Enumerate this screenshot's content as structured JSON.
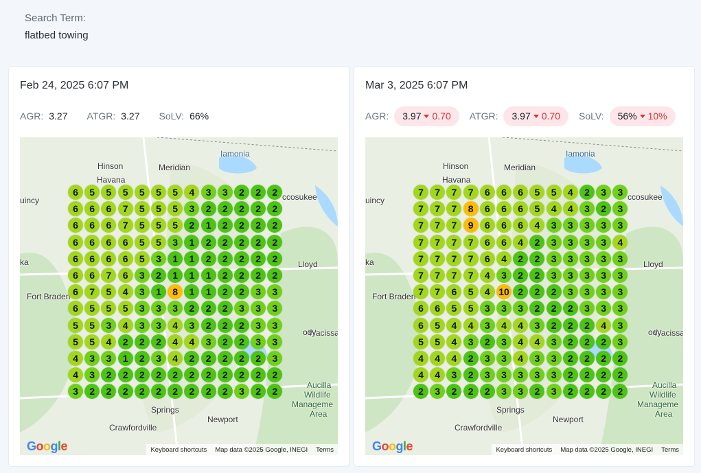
{
  "search": {
    "label": "Search Term:",
    "value": "flatbed towing"
  },
  "colors": {
    "green_dark": "#4cc414",
    "green_mid": "#6fd119",
    "green_light": "#a2d71d",
    "yellow": "#fbbc04",
    "delta_red": "#e03131",
    "pill_bg": "#fde6e9"
  },
  "map": {
    "footer": {
      "shortcuts": "Keyboard shortcuts",
      "data": "Map data ©2025 Google, INEGI",
      "terms": "Terms"
    },
    "logo": "Google",
    "places": [
      {
        "name": "Hinson"
      },
      {
        "name": "Havana"
      },
      {
        "name": "Meridian"
      },
      {
        "name": "Iamonia"
      },
      {
        "name": "ccosukee"
      },
      {
        "name": "uincy"
      },
      {
        "name": "Lloyd"
      },
      {
        "name": "Fort Braden"
      },
      {
        "name": "Wacissa"
      },
      {
        "name": "Aucilla"
      },
      {
        "name": "Wildlife"
      },
      {
        "name": "Manageme"
      },
      {
        "name": "Area"
      },
      {
        "name": "Springs"
      },
      {
        "name": "Newport"
      },
      {
        "name": "Crawfordville"
      },
      {
        "name": "ody"
      },
      {
        "name": "ka"
      }
    ]
  },
  "snapshots": [
    {
      "date": "Feb 24, 2025 6:07 PM",
      "metrics": [
        {
          "label": "AGR:",
          "value": "3.27",
          "delta": ""
        },
        {
          "label": "ATGR:",
          "value": "3.27",
          "delta": ""
        },
        {
          "label": "SoLV:",
          "value": "66%",
          "delta": ""
        }
      ],
      "grid": [
        [
          6,
          5,
          5,
          5,
          5,
          5,
          5,
          4,
          3,
          3,
          2,
          2,
          2
        ],
        [
          6,
          6,
          6,
          7,
          5,
          5,
          5,
          3,
          2,
          2,
          2,
          2,
          2
        ],
        [
          6,
          6,
          6,
          7,
          5,
          5,
          5,
          2,
          1,
          2,
          2,
          2,
          2
        ],
        [
          6,
          6,
          6,
          6,
          5,
          5,
          3,
          1,
          2,
          2,
          2,
          2,
          2
        ],
        [
          6,
          6,
          6,
          6,
          5,
          3,
          1,
          1,
          2,
          2,
          2,
          2,
          2
        ],
        [
          6,
          6,
          7,
          6,
          3,
          2,
          1,
          1,
          1,
          2,
          2,
          2,
          2
        ],
        [
          6,
          7,
          5,
          4,
          3,
          1,
          8,
          1,
          1,
          2,
          2,
          3,
          3
        ],
        [
          6,
          5,
          5,
          5,
          3,
          3,
          3,
          2,
          2,
          2,
          3,
          3,
          3
        ],
        [
          5,
          5,
          3,
          4,
          3,
          3,
          4,
          3,
          2,
          2,
          2,
          3,
          3
        ],
        [
          5,
          5,
          4,
          2,
          2,
          2,
          4,
          4,
          3,
          2,
          2,
          3,
          3
        ],
        [
          4,
          3,
          3,
          1,
          2,
          3,
          4,
          2,
          2,
          2,
          2,
          2,
          3
        ],
        [
          4,
          3,
          2,
          2,
          2,
          2,
          2,
          2,
          2,
          2,
          2,
          2,
          2
        ],
        [
          3,
          2,
          2,
          2,
          2,
          2,
          2,
          2,
          2,
          2,
          3,
          2,
          2
        ]
      ]
    },
    {
      "date": "Mar 3, 2025 6:07 PM",
      "metrics": [
        {
          "label": "AGR:",
          "value": "3.97",
          "delta": "0.70"
        },
        {
          "label": "ATGR:",
          "value": "3.97",
          "delta": "0.70"
        },
        {
          "label": "SoLV:",
          "value": "56%",
          "delta": "10%"
        }
      ],
      "grid": [
        [
          7,
          7,
          7,
          7,
          6,
          6,
          6,
          5,
          5,
          4,
          2,
          3,
          3
        ],
        [
          7,
          7,
          7,
          8,
          6,
          6,
          6,
          5,
          4,
          4,
          3,
          2,
          3
        ],
        [
          7,
          7,
          7,
          9,
          6,
          6,
          6,
          4,
          3,
          3,
          3,
          3,
          3
        ],
        [
          7,
          7,
          7,
          7,
          6,
          6,
          4,
          2,
          3,
          3,
          3,
          3,
          4
        ],
        [
          7,
          7,
          7,
          7,
          6,
          4,
          2,
          2,
          3,
          3,
          3,
          3,
          3
        ],
        [
          7,
          7,
          7,
          7,
          4,
          3,
          2,
          2,
          3,
          3,
          3,
          3,
          3
        ],
        [
          7,
          7,
          6,
          5,
          4,
          10,
          2,
          2,
          2,
          3,
          3,
          3,
          3
        ],
        [
          6,
          6,
          5,
          5,
          3,
          3,
          3,
          2,
          2,
          2,
          3,
          3,
          3
        ],
        [
          6,
          5,
          4,
          4,
          3,
          4,
          4,
          3,
          2,
          2,
          2,
          4,
          3
        ],
        [
          5,
          5,
          4,
          3,
          2,
          3,
          4,
          4,
          3,
          2,
          2,
          2,
          3
        ],
        [
          4,
          4,
          4,
          2,
          3,
          3,
          4,
          3,
          3,
          2,
          2,
          2,
          2
        ],
        [
          4,
          4,
          3,
          2,
          3,
          3,
          3,
          3,
          3,
          2,
          2,
          2,
          2
        ],
        [
          2,
          3,
          2,
          2,
          2,
          3,
          3,
          2,
          3,
          2,
          2,
          2,
          2
        ]
      ]
    }
  ]
}
